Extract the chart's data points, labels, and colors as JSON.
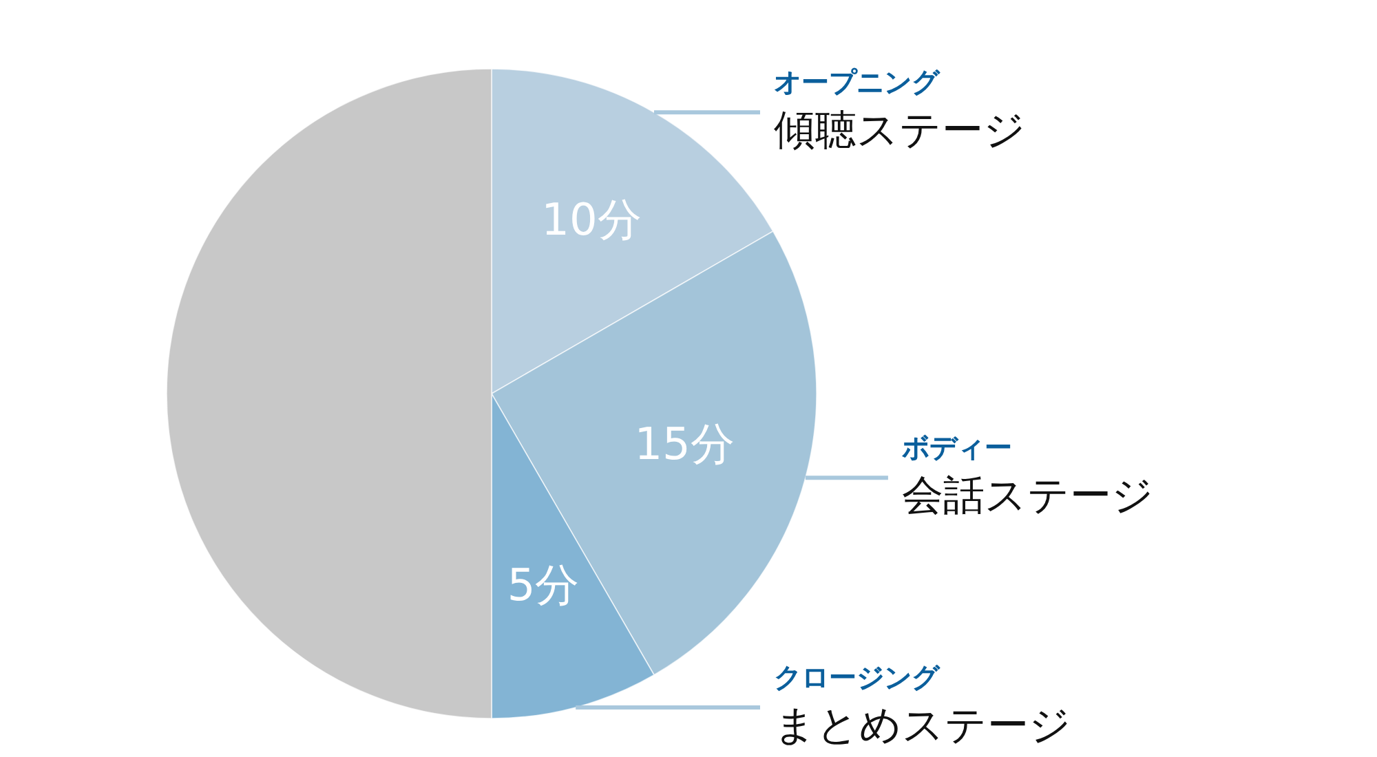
{
  "chart_data": {
    "type": "pie",
    "categories": [
      "傾聴ステージ",
      "会話ステージ",
      "まとめステージ",
      null
    ],
    "values": [
      10,
      15,
      5,
      30
    ],
    "colors": [
      "#b8cfe0",
      "#a3c4d9",
      "#83b4d4",
      "#c8c8c8"
    ],
    "value_labels": [
      "10分",
      "15分",
      "5分",
      null
    ],
    "annotations": [
      "オープニング",
      "ボディー",
      "クロージング"
    ]
  }
}
